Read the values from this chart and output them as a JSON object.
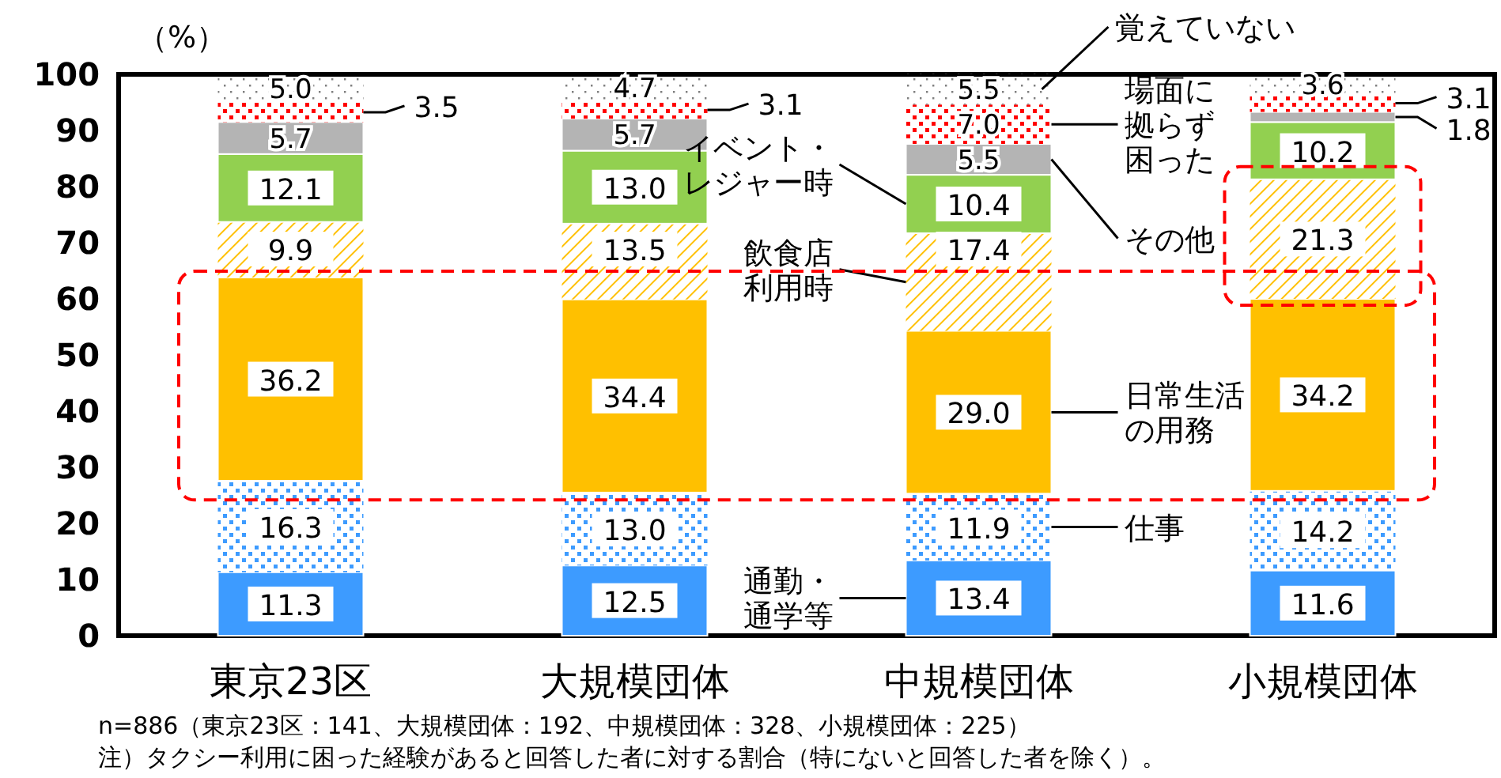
{
  "chart_data": {
    "type": "bar",
    "stacked": true,
    "ylabel": "（%）",
    "categories": [
      "東京23区",
      "大規模団体",
      "中規模団体",
      "小規模団体"
    ],
    "ylim": [
      0,
      100
    ],
    "yticks": [
      0,
      10,
      20,
      30,
      40,
      50,
      60,
      70,
      80,
      90,
      100
    ],
    "grid": false,
    "series": [
      {
        "name": "通勤・通学等",
        "color": "#3d9bff",
        "values": [
          11.3,
          12.5,
          13.4,
          11.6
        ],
        "value_labels": [
          "11.3",
          "12.5",
          "13.4",
          "11.6"
        ]
      },
      {
        "name": "仕事",
        "color": "#3d9bff",
        "values": [
          16.3,
          13.0,
          11.9,
          14.2
        ],
        "value_labels": [
          "16.3",
          "13.0",
          "11.9",
          "14.2"
        ]
      },
      {
        "name": "日常生活の用務",
        "color": "#ffc000",
        "values": [
          36.2,
          34.4,
          29.0,
          34.2
        ],
        "value_labels": [
          "36.2",
          "34.4",
          "29.0",
          "34.2"
        ]
      },
      {
        "name": "飲食店利用時",
        "color": "#ffc000",
        "values": [
          9.9,
          13.5,
          17.4,
          21.3
        ],
        "value_labels": [
          "9.9",
          "13.5",
          "17.4",
          "21.3"
        ]
      },
      {
        "name": "イベント・レジャー時",
        "color": "#92d050",
        "values": [
          12.1,
          13.0,
          10.4,
          10.2
        ],
        "value_labels": [
          "12.1",
          "13.0",
          "10.4",
          "10.2"
        ]
      },
      {
        "name": "その他",
        "color": "#b4b4b4",
        "values": [
          5.7,
          5.7,
          5.5,
          1.8
        ],
        "value_labels": [
          "5.7",
          "5.7",
          "5.5",
          "1.8"
        ]
      },
      {
        "name": "場面に拠らず困った",
        "color": "#ff0000",
        "values": [
          3.5,
          3.1,
          7.0,
          3.1
        ],
        "value_labels": [
          "3.5",
          "3.1",
          "7.0",
          "3.1"
        ]
      },
      {
        "name": "覚えていない",
        "color": "#7f7f7f",
        "values": [
          5.0,
          4.7,
          5.5,
          3.6
        ],
        "value_labels": [
          "5.0",
          "4.7",
          "5.5",
          "3.6"
        ]
      }
    ],
    "annotations": [
      "n=886（東京23区：141、大規模団体：192、中規模団体：328、小規模団体：225）",
      "注）タクシー利用に困った経験があると回答した者に対する割合（特にないと回答した者を除く）。"
    ]
  }
}
